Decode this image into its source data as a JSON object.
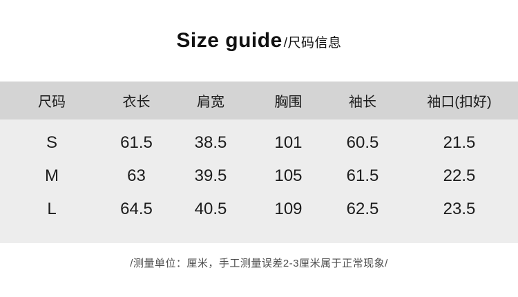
{
  "header": {
    "title_en": "Size guide",
    "title_cn": "/尺码信息"
  },
  "table": {
    "columns": [
      "尺码",
      "衣长",
      "肩宽",
      "胸围",
      "袖长",
      "袖口(扣好)"
    ],
    "rows": [
      {
        "size": "S",
        "values": [
          "61.5",
          "38.5",
          "101",
          "60.5",
          "21.5"
        ]
      },
      {
        "size": "M",
        "values": [
          "63",
          "39.5",
          "105",
          "61.5",
          "22.5"
        ]
      },
      {
        "size": "L",
        "values": [
          "64.5",
          "40.5",
          "109",
          "62.5",
          "23.5"
        ]
      }
    ]
  },
  "footer": {
    "note": "/测量单位：厘米，手工测量误差2-3厘米属于正常现象/"
  },
  "colors": {
    "header_row_bg": "#d4d4d4",
    "body_bg": "#ededed",
    "text": "#1c1c1c",
    "note_text": "#4d4d4d"
  }
}
